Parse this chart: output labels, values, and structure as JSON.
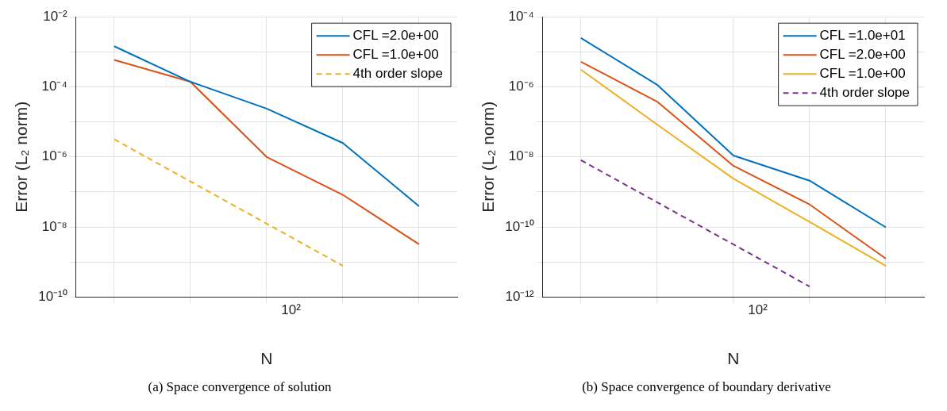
{
  "chart_data": [
    {
      "type": "line",
      "title": "(a) Space convergence of solution",
      "xlabel": "N",
      "ylabel": "Error (L₂ norm)",
      "log": "y",
      "grid": true,
      "legend": "top right",
      "line_style": "solid",
      "marker": "none",
      "categories": [
        null,
        null,
        null,
        null,
        null
      ],
      "ylim": [
        1e-10,
        0.01
      ],
      "yticks": [
        {
          "value": 1e-10,
          "label": "10⁻¹⁰"
        },
        {
          "value": 1e-09,
          "label": null
        },
        {
          "value": 1e-08,
          "label": "10⁻⁸"
        },
        {
          "value": 1e-07,
          "label": null
        },
        {
          "value": 1e-06,
          "label": "10⁻⁶"
        },
        {
          "value": 1e-05,
          "label": null
        },
        {
          "value": 0.0001,
          "label": "10⁻⁴"
        },
        {
          "value": 0.001,
          "label": null
        },
        {
          "value": 0.01,
          "label": "10⁻²"
        }
      ],
      "series": [
        {
          "name": "CFL =2.0e+00",
          "color": "#0072bd",
          "values": [
            0.00145,
            0.00014,
            2.4e-05,
            2.5e-06,
            3.9e-08
          ]
        },
        {
          "name": "CFL =1.0e+00",
          "color": "#d95319",
          "values": [
            0.00059,
            0.00014,
            1e-06,
            8.3e-08,
            3.2e-09
          ]
        },
        {
          "name": "4th order slope",
          "color": "#edb120",
          "line_style": "dashed",
          "values": [
            3.2e-06,
            null,
            null,
            7.8e-10,
            null
          ]
        }
      ],
      "annotations": [
        "10²"
      ]
    },
    {
      "type": "line",
      "title": "(b) Space convergence of boundary derivative",
      "xlabel": "N",
      "ylabel": "Error (L₂ norm)",
      "log": "y",
      "grid": true,
      "legend": "top right",
      "line_style": "solid",
      "marker": "none",
      "categories": [
        null,
        null,
        null,
        null,
        null
      ],
      "ylim": [
        1e-12,
        0.0001
      ],
      "yticks": [
        {
          "value": 1e-12,
          "label": "10⁻¹²"
        },
        {
          "value": 1e-11,
          "label": null
        },
        {
          "value": 1e-10,
          "label": "10⁻¹⁰"
        },
        {
          "value": 1e-09,
          "label": null
        },
        {
          "value": 1e-08,
          "label": "10⁻⁸"
        },
        {
          "value": 1e-07,
          "label": null
        },
        {
          "value": 1e-06,
          "label": "10⁻⁶"
        },
        {
          "value": 1e-05,
          "label": null
        },
        {
          "value": 0.0001,
          "label": "10⁻⁴"
        }
      ],
      "series": [
        {
          "name": "CFL =1.0e+01",
          "color": "#0072bd",
          "values": [
            2.5e-05,
            1.15e-06,
            1.1e-08,
            2.1e-09,
            9.8e-11
          ]
        },
        {
          "name": "CFL =2.0e+00",
          "color": "#d95319",
          "values": [
            5.2e-06,
            3.8e-07,
            5.6e-09,
            4.4e-10,
            1.25e-11
          ]
        },
        {
          "name": "CFL =1.0e+00",
          "color": "#edb120",
          "values": [
            3.1e-06,
            8.4e-08,
            2.4e-09,
            1.4e-10,
            7.8e-12
          ]
        },
        {
          "name": "4th order slope",
          "color": "#7e2f8e",
          "line_style": "dashed",
          "values": [
            8.1e-09,
            null,
            null,
            2e-12,
            null
          ]
        }
      ],
      "annotations": [
        "10²"
      ]
    }
  ]
}
